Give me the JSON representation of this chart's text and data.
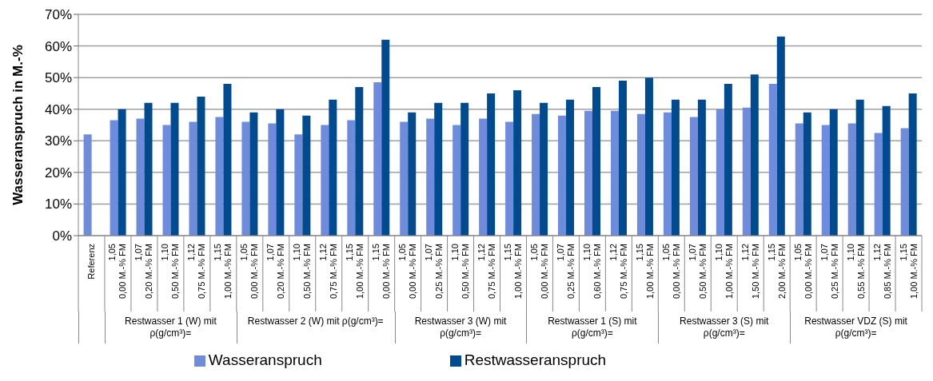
{
  "chart_data": {
    "type": "bar",
    "ylabel": "Wasseranspruch in M.-%",
    "categories": [
      "Referenz",
      "1,05\n0,00 M.-% FM",
      "1,07\n0,20 M.-% FM",
      "1,10\n0,50 M.-% FM",
      "1,12\n0,75 M.-% FM",
      "1,15\n1,00 M.-% FM",
      "1,05\n0,00 M.-% FM",
      "1,07\n0,20 M.-% FM",
      "1,10\n0,50 M.-% FM",
      "1,12\n0,75 M.-% FM",
      "1,15\n1,00 M.-% FM",
      "1,15\n0,00 M.-% FM",
      "1,05\n0,00 M.-% FM",
      "1,07\n0,25 M.-% FM",
      "1,10\n0,50 M.-% FM",
      "1,12\n0,75 M.-% FM",
      "1,15\n1,00 M.-% FM",
      "1,05\n0,00 M.-% FM",
      "1,07\n0,25 M.-% FM",
      "1,10\n0,60 M.-% FM",
      "1,12\n0,75 M.-% FM",
      "1,15\n1,00 M.-% FM",
      "1,05\n0,00 M.-% FM",
      "1,07\n0,50 M.-% FM",
      "1,10\n1,00 M.-% FM",
      "1,12\n1,50 M.-% FM",
      "1,15\n2,00 M.-% FM",
      "1,05\n0,00 M.-% FM",
      "1,07\n0,25 M.-% FM",
      "1,10\n0,55 M.-% FM",
      "1,12\n0,85 M.-% FM",
      "1,15\n1,00 M.-% FM"
    ],
    "series": [
      {
        "name": "Wasseranspruch",
        "color": "#6f8cdc",
        "values": [
          32,
          36.5,
          37,
          35,
          36,
          37.5,
          36,
          35.5,
          32,
          35,
          36.5,
          48.5,
          36,
          37,
          35,
          37,
          36,
          38.5,
          38,
          39.5,
          39.5,
          38.5,
          39,
          37.5,
          40,
          40.5,
          48,
          35.5,
          35,
          35.5,
          32.5,
          34
        ]
      },
      {
        "name": "Restwasseranspruch",
        "color": "#004a8f",
        "values": [
          null,
          40,
          42,
          42,
          44,
          48,
          39,
          40,
          38,
          43,
          47,
          62,
          39,
          42,
          42,
          45,
          46,
          42,
          43,
          47,
          49,
          50,
          43,
          43,
          48,
          51,
          63,
          39,
          40,
          43,
          41,
          45
        ]
      }
    ],
    "ylim": [
      0,
      70
    ],
    "yticks": [
      {
        "value": 0,
        "label": "0%"
      },
      {
        "value": 10,
        "label": "10%"
      },
      {
        "value": 20,
        "label": "20%"
      },
      {
        "value": 30,
        "label": "30%"
      },
      {
        "value": 40,
        "label": "40%"
      },
      {
        "value": 50,
        "label": "50%"
      },
      {
        "value": 60,
        "label": "60%"
      },
      {
        "value": 70,
        "label": "70%"
      }
    ],
    "grid": "y",
    "legend": "bottom",
    "annotations": [
      "Restwasser 1 (W) mit ρ(g/cm³)=",
      "Restwasser 2 (W) mit ρ(g/cm³)=",
      "Restwasser 3 (W) mit ρ(g/cm³)=",
      "Restwasser 1 (S) mit ρ(g/cm³)=",
      "Restwasser 3 (S) mit ρ(g/cm³)=",
      "Restwasser VDZ (S) mit ρ(g/cm³)="
    ]
  }
}
